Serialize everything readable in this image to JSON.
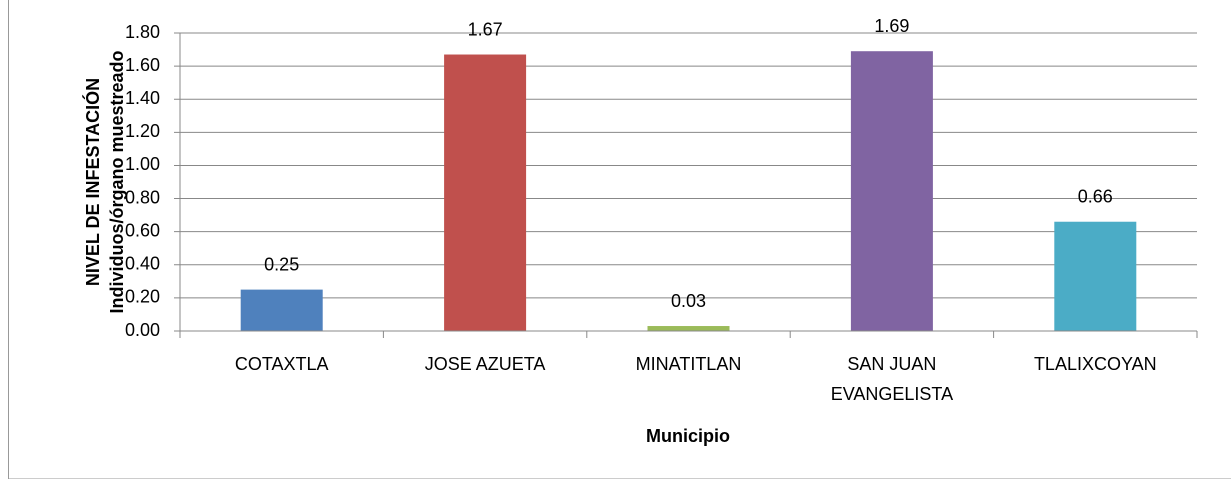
{
  "chart_data": {
    "type": "bar",
    "y_label": [
      "NIVEL DE INFESTACIÓN",
      "Individuos/órgano muestreado"
    ],
    "x_label": "Municipio",
    "categories": [
      "COTAXTLA",
      "JOSE AZUETA",
      "MINATITLAN",
      "SAN JUAN EVANGELISTA",
      "TLALIXCOYAN"
    ],
    "values": [
      0.25,
      1.67,
      0.03,
      1.69,
      0.66
    ],
    "colors": [
      "#4f81bd",
      "#c0504d",
      "#9bbb59",
      "#8064a2",
      "#4bacc6"
    ],
    "ylim": [
      0,
      1.8
    ],
    "yticks": [
      {
        "value": 0,
        "label": "0.00"
      },
      {
        "value": 0.2,
        "label": "0.20"
      },
      {
        "value": 0.4,
        "label": "0.40"
      },
      {
        "value": 0.6,
        "label": "0.60"
      },
      {
        "value": 0.8,
        "label": "0.80"
      },
      {
        "value": 1,
        "label": "1.00"
      },
      {
        "value": 1.2,
        "label": "1.20"
      },
      {
        "value": 1.4,
        "label": "1.40"
      },
      {
        "value": 1.6,
        "label": "1.60"
      },
      {
        "value": 1.8,
        "label": "1.80"
      }
    ],
    "grid": true
  }
}
